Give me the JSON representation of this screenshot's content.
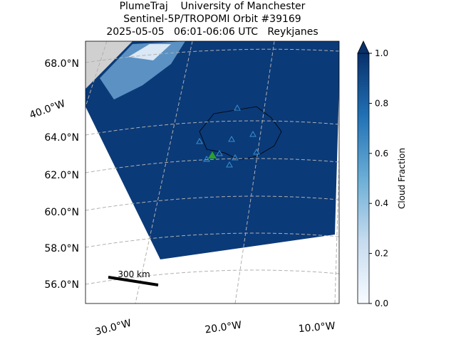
{
  "title": [
    "PlumeTraj    University of Manchester",
    "Sentinel-5P/TROPOMI Orbit #39169",
    "2025-05-05   06:01-06:06 UTC   Reykjanes"
  ],
  "latitude_labels": [
    "68.0°N",
    "64.0°N",
    "62.0°N",
    "60.0°N",
    "58.0°N",
    "56.0°N"
  ],
  "longitude_labels": [
    "40.0°W",
    "30.0°W",
    "20.0°W",
    "10.0°W"
  ],
  "scale_bar": "300 km",
  "colorbar": {
    "label": "Cloud Fraction",
    "lim": [
      0,
      1
    ],
    "ticks": [
      {
        "value": 0,
        "label": "0.0"
      },
      {
        "value": 0.2,
        "label": "0.2"
      },
      {
        "value": 0.4,
        "label": "0.4"
      },
      {
        "value": 0.6,
        "label": "0.6"
      },
      {
        "value": 0.8,
        "label": "0.8"
      },
      {
        "value": 1,
        "label": "1.0"
      }
    ]
  }
}
